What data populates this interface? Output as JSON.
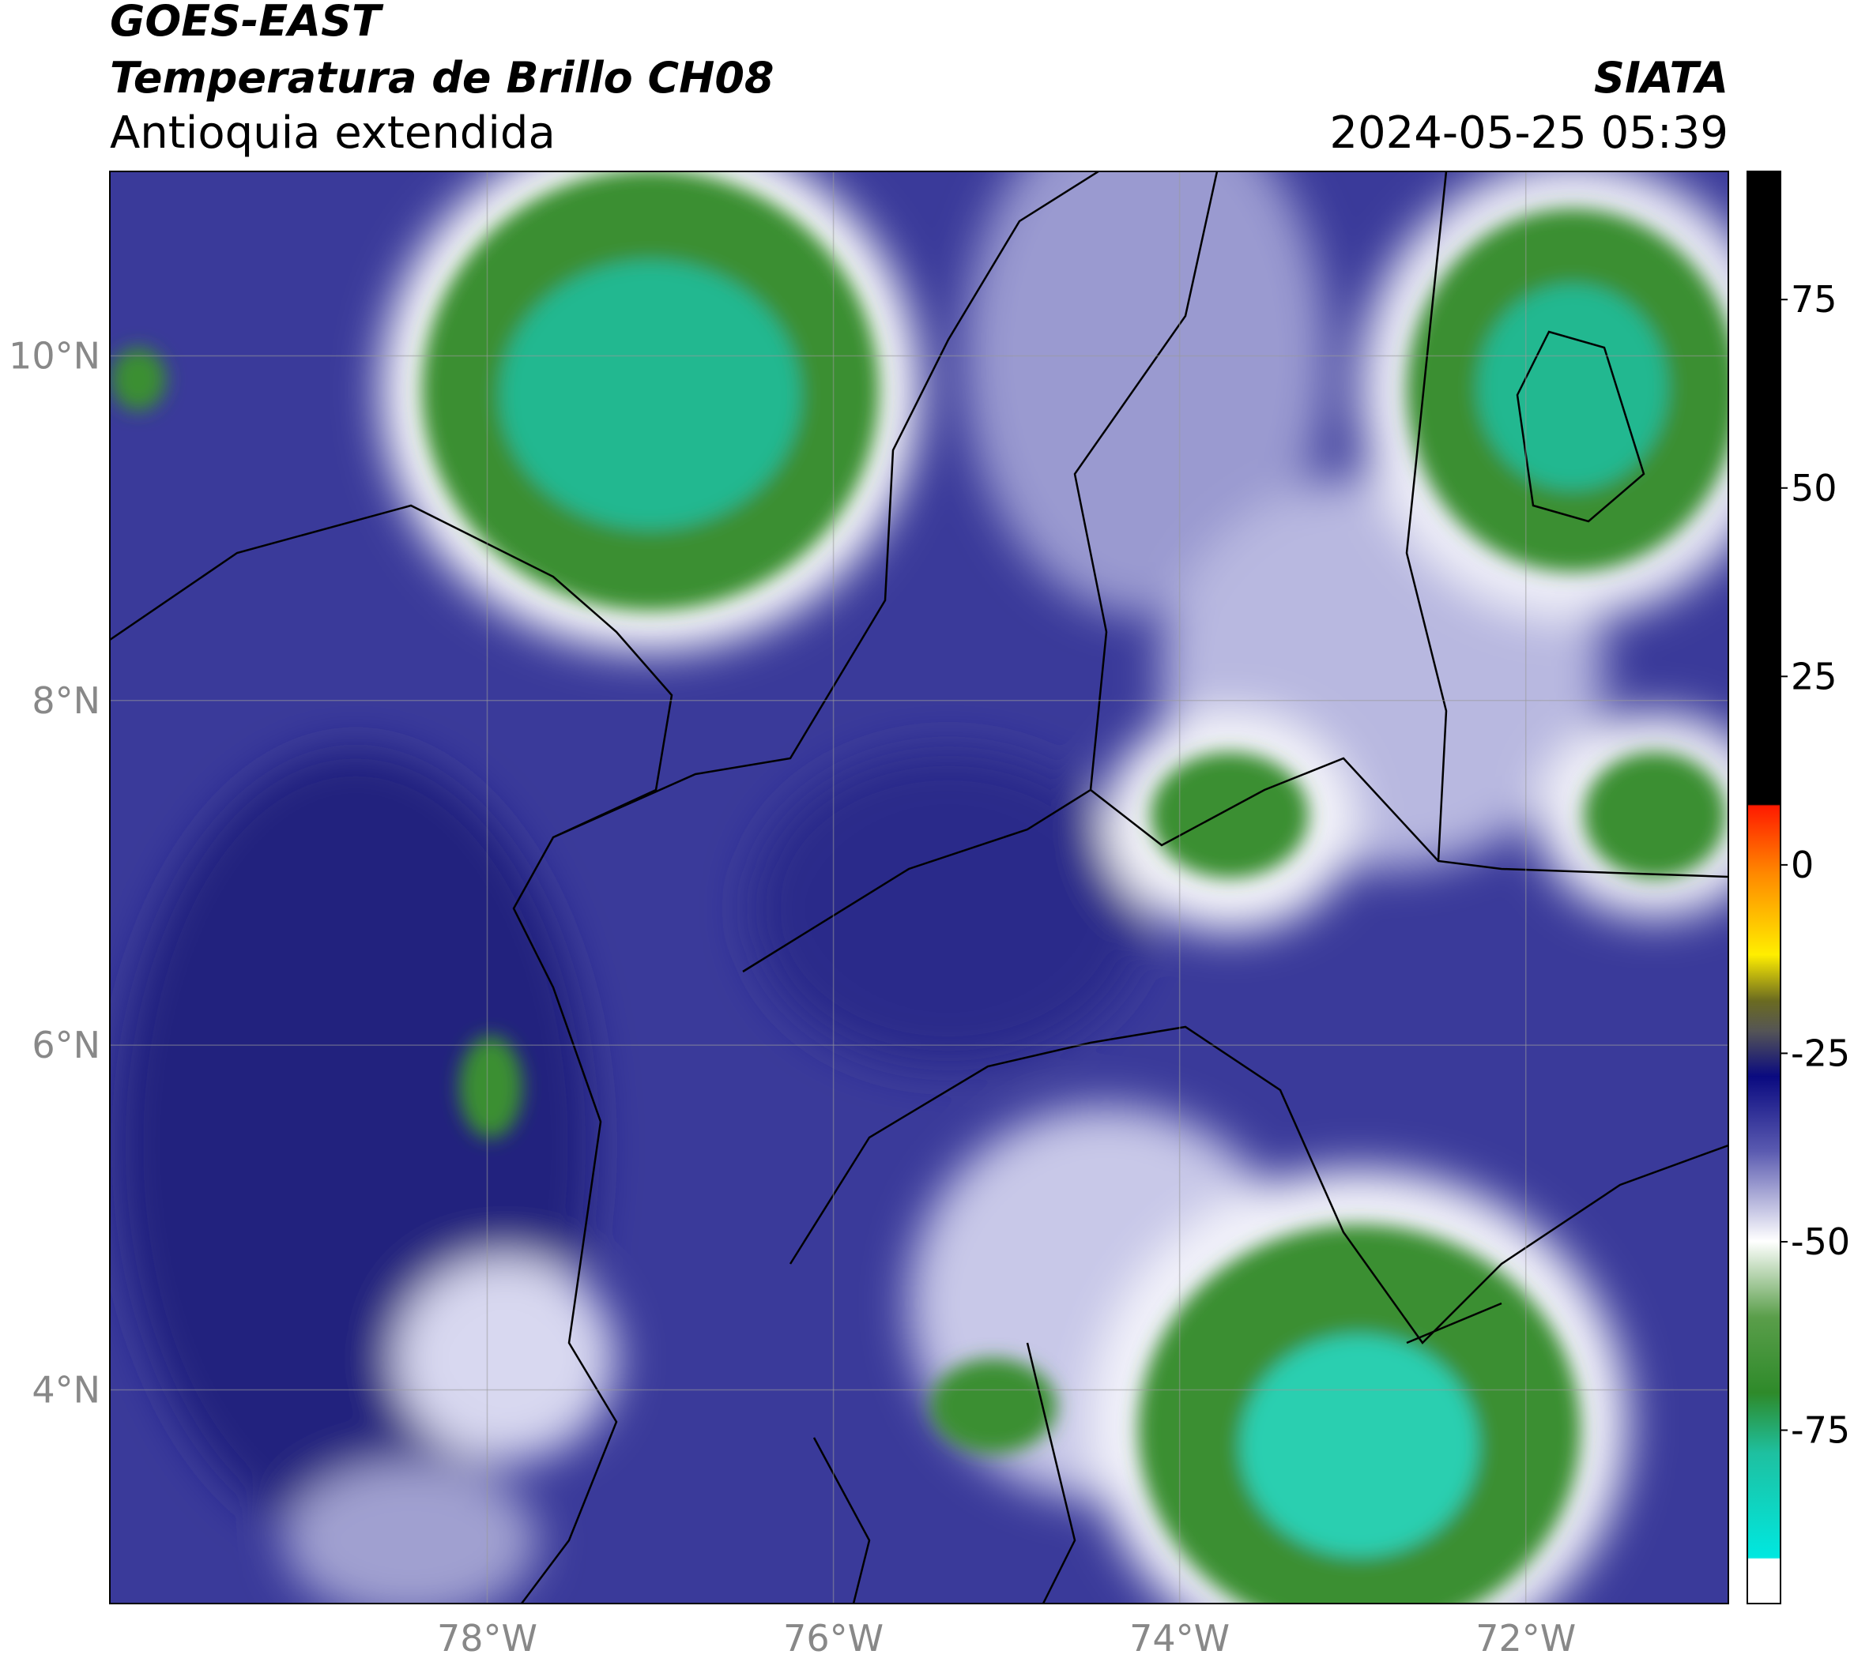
{
  "header": {
    "title": "GOES-EAST",
    "subtitle": "Temperatura de Brillo CH08",
    "region": "Antioquia extendida",
    "source": "SIATA",
    "datetime": "2024-05-25 05:39"
  },
  "map": {
    "lonlim": [
      -80.18,
      -70.83
    ],
    "latlim": [
      2.76,
      11.07
    ],
    "lon_ticks": [
      {
        "value": -78,
        "label": "78°W"
      },
      {
        "value": -76,
        "label": "76°W"
      },
      {
        "value": -74,
        "label": "74°W"
      },
      {
        "value": -72,
        "label": "72°W"
      }
    ],
    "lat_ticks": [
      {
        "value": 10,
        "label": "10°N"
      },
      {
        "value": 8,
        "label": "8°N"
      },
      {
        "value": 6,
        "label": "6°N"
      },
      {
        "value": 4,
        "label": "4°N"
      }
    ]
  },
  "colorbar": {
    "lim": [
      -98,
      92
    ],
    "ticks": [
      75,
      50,
      25,
      0,
      -25,
      -50,
      -75
    ]
  }
}
